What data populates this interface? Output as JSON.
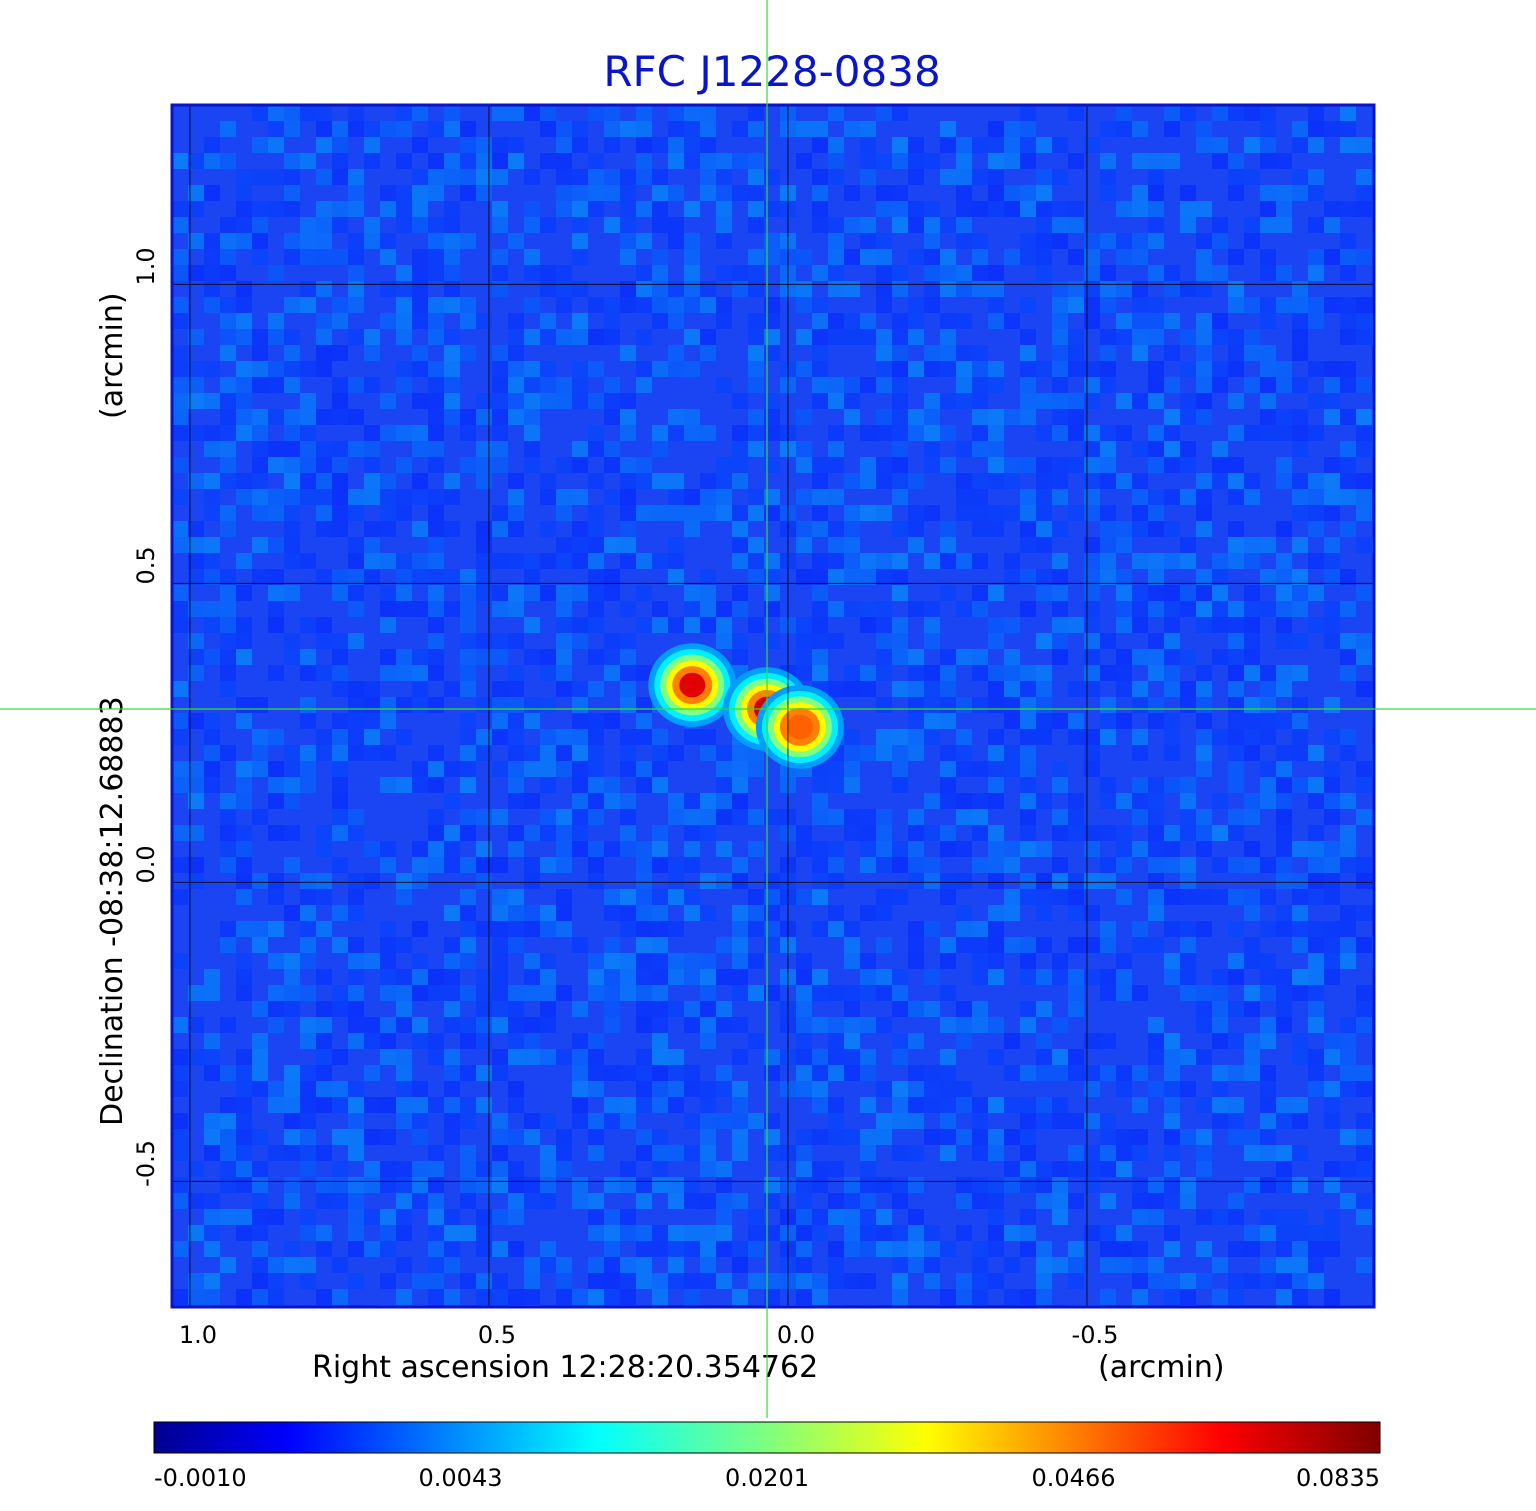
{
  "chart_data": {
    "type": "heatmap",
    "title": "RFC J1228-0838",
    "title_color": "#0a14c8",
    "xlabel": "Right ascension  12:28:20.354762",
    "xunit": "(arcmin)",
    "ylabel": "Declination  -08:38:12.68883",
    "yunit": "(arcmin)",
    "xlim": [
      1.03,
      -0.98
    ],
    "ylim": [
      -0.71,
      1.3
    ],
    "x_ticks": [
      {
        "value": 1.0,
        "label": "1.0"
      },
      {
        "value": 0.5,
        "label": "0.5"
      },
      {
        "value": 0.0,
        "label": "0.0"
      },
      {
        "value": -0.5,
        "label": "-0.5"
      }
    ],
    "y_ticks": [
      {
        "value": 1.0,
        "label": "1.0"
      },
      {
        "value": 0.5,
        "label": "0.5"
      },
      {
        "value": 0.0,
        "label": "0.0"
      },
      {
        "value": -0.5,
        "label": "-0.5"
      }
    ],
    "grid": true,
    "crosshair": {
      "x": 0.035,
      "y": 0.29,
      "color": "#33dd33"
    },
    "colormap": "jet",
    "colorbar": {
      "orientation": "horizontal",
      "position": "bottom",
      "ticks": [
        "-0.0010",
        "0.0043",
        "0.0201",
        "0.0466",
        "0.0835"
      ],
      "min": -0.001,
      "max": 0.0835
    },
    "sources": [
      {
        "x": 0.16,
        "y": 0.33,
        "peak": 0.082
      },
      {
        "x": 0.035,
        "y": 0.29,
        "peak": 0.0835
      },
      {
        "x": -0.02,
        "y": 0.26,
        "peak": 0.07
      }
    ]
  }
}
